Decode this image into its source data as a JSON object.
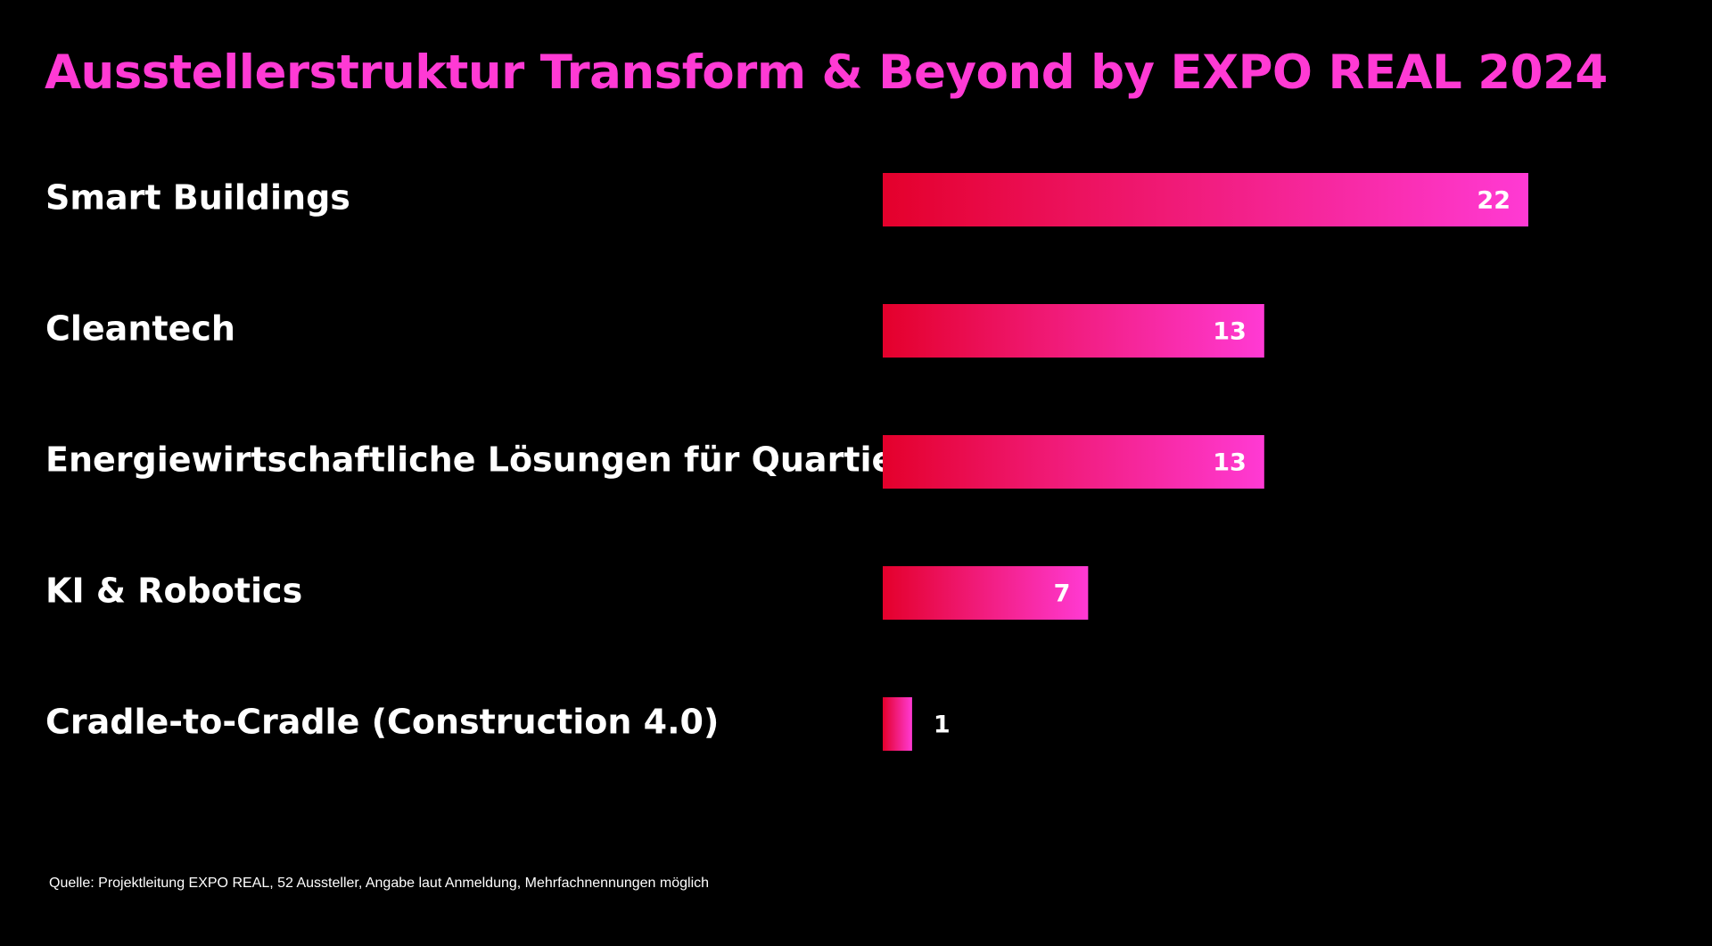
{
  "colors": {
    "background": "#000000",
    "title": "#ff3ad4",
    "text": "#ffffff",
    "bar_gradient_start": "#e4002b",
    "bar_gradient_end": "#ff3ad4"
  },
  "chart_data": {
    "type": "bar",
    "orientation": "horizontal",
    "title": "Ausstellerstruktur Transform & Beyond by EXPO REAL 2024",
    "categories": [
      "Smart Buildings",
      "Cleantech",
      "Energiewirtschaftliche Lösungen für Quartiere",
      "KI & Robotics",
      "Cradle-to-Cradle (Construction 4.0)"
    ],
    "values": [
      22,
      13,
      13,
      7,
      1
    ],
    "data_labels": [
      "22",
      "13",
      "13",
      "7",
      "1"
    ],
    "xlabel": "",
    "ylabel": "",
    "xlim": [
      0,
      22
    ],
    "grid": false,
    "legend": "none"
  },
  "footer": {
    "source": "Quelle: Projektleitung EXPO REAL, 52 Aussteller, Angabe laut Anmeldung, Mehrfachnennungen möglich"
  }
}
